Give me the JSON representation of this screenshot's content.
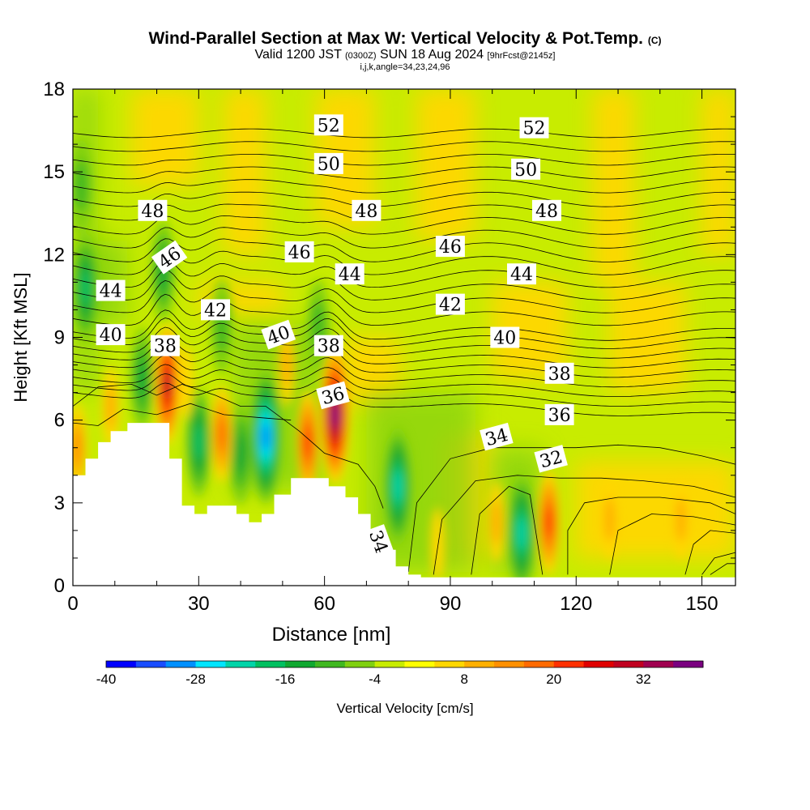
{
  "title": {
    "main": "Wind-Parallel Section at Max W: Vertical Velocity & Pot.Temp.",
    "copyright": "(C)",
    "valid_prefix": "Valid 1200 JST",
    "valid_utc": "(0300Z)",
    "valid_date": "SUN 18 Aug 2024",
    "forecast": "[9hrFcst@2145z]",
    "indices": "i,j,k,angle=34,23,24,96"
  },
  "chart_data": {
    "type": "heatmap",
    "title": "Wind-Parallel Section at Max W: Vertical Velocity & Pot.Temp.",
    "xlabel": "Distance [nm]",
    "ylabel": "Height [Kft MSL]",
    "xlim": [
      0,
      158
    ],
    "ylim": [
      0,
      18
    ],
    "xticks": [
      0,
      30,
      60,
      90,
      120,
      150
    ],
    "yticks": [
      0,
      3,
      6,
      9,
      12,
      15,
      18
    ],
    "xtick_labels": [
      "0",
      "30",
      "60",
      "90",
      "120",
      "150"
    ],
    "ytick_labels": [
      "0",
      "3",
      "6",
      "9",
      "12",
      "15",
      "18"
    ],
    "colorbar": {
      "label": "Vertical Velocity [cm/s]",
      "min": -40,
      "max": 40,
      "step": 4,
      "tick_values": [
        -40,
        -28,
        -16,
        -4,
        8,
        20,
        32
      ],
      "tick_labels": [
        "-40",
        "-28",
        "-16",
        "-4",
        "8",
        "20",
        "32"
      ],
      "colors": [
        "#0000ff",
        "#1a4dff",
        "#0090ff",
        "#00e5ff",
        "#00d4a8",
        "#00c060",
        "#10a830",
        "#40b820",
        "#80d010",
        "#c8ec00",
        "#ffff00",
        "#ffd700",
        "#ffb000",
        "#ff9000",
        "#ff6a00",
        "#ff3000",
        "#e00000",
        "#c00020",
        "#a00050",
        "#7a0080"
      ]
    },
    "terrain": [
      [
        0,
        4.0
      ],
      [
        3,
        4.0
      ],
      [
        3,
        4.6
      ],
      [
        6,
        4.6
      ],
      [
        6,
        5.2
      ],
      [
        9,
        5.2
      ],
      [
        9,
        5.6
      ],
      [
        13,
        5.6
      ],
      [
        13,
        5.9
      ],
      [
        23,
        5.9
      ],
      [
        23,
        4.6
      ],
      [
        26,
        4.6
      ],
      [
        26,
        2.9
      ],
      [
        29,
        2.9
      ],
      [
        29,
        2.6
      ],
      [
        32,
        2.6
      ],
      [
        32,
        2.9
      ],
      [
        39,
        2.9
      ],
      [
        39,
        2.6
      ],
      [
        42,
        2.6
      ],
      [
        42,
        2.3
      ],
      [
        45,
        2.3
      ],
      [
        45,
        2.6
      ],
      [
        48,
        2.6
      ],
      [
        48,
        3.3
      ],
      [
        52,
        3.3
      ],
      [
        52,
        3.9
      ],
      [
        61,
        3.9
      ],
      [
        61,
        3.6
      ],
      [
        65,
        3.6
      ],
      [
        65,
        3.2
      ],
      [
        68,
        3.2
      ],
      [
        68,
        2.6
      ],
      [
        71,
        2.6
      ],
      [
        71,
        2.0
      ],
      [
        74,
        2.0
      ],
      [
        74,
        1.3
      ],
      [
        77,
        1.3
      ],
      [
        77,
        0.7
      ],
      [
        80,
        0.7
      ],
      [
        80,
        0.4
      ],
      [
        83,
        0.4
      ],
      [
        83,
        0.3
      ],
      [
        158,
        0.3
      ]
    ],
    "updraft_cores": [
      {
        "x": 22.5,
        "y": 7.3,
        "w": 28
      },
      {
        "x": 62.5,
        "y": 6.2,
        "w": 36
      },
      {
        "x": 56,
        "y": 5.2,
        "w": 20
      },
      {
        "x": 35.5,
        "y": 5.5,
        "w": 16
      },
      {
        "x": 113.5,
        "y": 2.3,
        "w": 22
      },
      {
        "x": 101,
        "y": 2.3,
        "w": 10
      },
      {
        "x": 1,
        "y": 5.0,
        "w": 14
      },
      {
        "x": 9,
        "y": 6.5,
        "w": 10
      },
      {
        "x": 27,
        "y": 7.4,
        "w": 6
      },
      {
        "x": 145,
        "y": 2.4,
        "w": 8
      },
      {
        "x": 128,
        "y": 2.4,
        "w": 8
      },
      {
        "x": 87,
        "y": 1.5,
        "w": 6
      },
      {
        "x": 51,
        "y": 8.0,
        "w": 8
      }
    ],
    "downdraft_cores": [
      {
        "x": 46,
        "y": 5.4,
        "w": -28
      },
      {
        "x": 30,
        "y": 5.2,
        "w": -16
      },
      {
        "x": 40,
        "y": 4.8,
        "w": -12
      },
      {
        "x": 77.5,
        "y": 3.6,
        "w": -20
      },
      {
        "x": 107,
        "y": 1.9,
        "w": -20
      },
      {
        "x": 3,
        "y": 10.8,
        "w": -18
      },
      {
        "x": 16.5,
        "y": 7.5,
        "w": -14
      },
      {
        "x": 21.5,
        "y": 11.4,
        "w": -14
      },
      {
        "x": 35.5,
        "y": 9.4,
        "w": -10
      },
      {
        "x": 58.5,
        "y": 9.4,
        "w": -10
      },
      {
        "x": 2,
        "y": 14.5,
        "w": -10
      }
    ],
    "theta_labels": [
      {
        "value": "52",
        "x": 61,
        "y": 16.7
      },
      {
        "value": "52",
        "x": 110,
        "y": 16.6
      },
      {
        "value": "50",
        "x": 61,
        "y": 15.3
      },
      {
        "value": "50",
        "x": 108,
        "y": 15.1
      },
      {
        "value": "48",
        "x": 19,
        "y": 13.6
      },
      {
        "value": "48",
        "x": 70,
        "y": 13.6
      },
      {
        "value": "48",
        "x": 113,
        "y": 13.6
      },
      {
        "value": "46",
        "x": 23,
        "y": 11.9,
        "rot": -35
      },
      {
        "value": "46",
        "x": 54,
        "y": 12.1
      },
      {
        "value": "46",
        "x": 90,
        "y": 12.3
      },
      {
        "value": "44",
        "x": 9,
        "y": 10.7
      },
      {
        "value": "44",
        "x": 66,
        "y": 11.3
      },
      {
        "value": "44",
        "x": 107,
        "y": 11.3
      },
      {
        "value": "42",
        "x": 34,
        "y": 10.0
      },
      {
        "value": "42",
        "x": 90,
        "y": 10.2
      },
      {
        "value": "40",
        "x": 9,
        "y": 9.1
      },
      {
        "value": "40",
        "x": 49,
        "y": 9.1,
        "rot": -20
      },
      {
        "value": "40",
        "x": 103,
        "y": 9.0
      },
      {
        "value": "38",
        "x": 22,
        "y": 8.7
      },
      {
        "value": "38",
        "x": 61,
        "y": 8.7
      },
      {
        "value": "38",
        "x": 116,
        "y": 7.7
      },
      {
        "value": "36",
        "x": 62,
        "y": 6.9,
        "rot": -15
      },
      {
        "value": "36",
        "x": 116,
        "y": 6.2
      },
      {
        "value": "34",
        "x": 101,
        "y": 5.4,
        "rot": -15
      },
      {
        "value": "34",
        "x": 73,
        "y": 1.6,
        "rot": 70
      },
      {
        "value": "32",
        "x": 114,
        "y": 4.6,
        "rot": -15
      }
    ]
  }
}
